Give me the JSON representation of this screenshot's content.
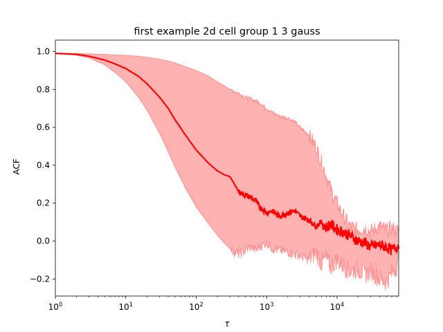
{
  "chart_data": {
    "type": "line",
    "title": "first example 2d cell group 1 3 gauss",
    "xlabel": "τ",
    "ylabel": "ACF",
    "xscale": "log",
    "xlim": [
      1,
      75000
    ],
    "ylim": [
      -0.29,
      1.06
    ],
    "grid": false,
    "x_ticks": [
      {
        "value": 1,
        "base": "10",
        "exp": "0"
      },
      {
        "value": 10,
        "base": "10",
        "exp": "1"
      },
      {
        "value": 100,
        "base": "10",
        "exp": "2"
      },
      {
        "value": 1000,
        "base": "10",
        "exp": "3"
      },
      {
        "value": 10000,
        "base": "10",
        "exp": "4"
      }
    ],
    "y_ticks": [
      {
        "value": -0.2,
        "label": "−0.2"
      },
      {
        "value": 0.0,
        "label": "0.0"
      },
      {
        "value": 0.2,
        "label": "0.2"
      },
      {
        "value": 0.4,
        "label": "0.4"
      },
      {
        "value": 0.6,
        "label": "0.6"
      },
      {
        "value": 0.8,
        "label": "0.8"
      },
      {
        "value": 1.0,
        "label": "1.0"
      }
    ],
    "series": [
      {
        "color": "#ff0000",
        "x": [
          1,
          2,
          3,
          5,
          7,
          10,
          15,
          20,
          30,
          40,
          50,
          70,
          100,
          150,
          200,
          250,
          300,
          350,
          400,
          450,
          500,
          600,
          700,
          800,
          1000,
          1200,
          1500,
          2000,
          2500,
          3000,
          4000,
          5000,
          6000,
          7000,
          8000,
          10000,
          12000,
          15000,
          20000,
          25000,
          30000,
          40000,
          50000,
          60000,
          75000
        ],
        "y": [
          0.99,
          0.985,
          0.975,
          0.955,
          0.935,
          0.91,
          0.87,
          0.83,
          0.76,
          0.7,
          0.64,
          0.56,
          0.48,
          0.41,
          0.37,
          0.35,
          0.34,
          0.3,
          0.26,
          0.25,
          0.24,
          0.23,
          0.21,
          0.18,
          0.15,
          0.16,
          0.13,
          0.15,
          0.16,
          0.13,
          0.11,
          0.08,
          0.1,
          0.07,
          0.09,
          0.06,
          0.05,
          0.03,
          0.0,
          -0.01,
          -0.03,
          -0.02,
          -0.03,
          -0.05,
          -0.02
        ]
      }
    ],
    "band": {
      "color": "#ff0000",
      "opacity": 0.3,
      "x": [
        1,
        2,
        3,
        5,
        7,
        10,
        15,
        20,
        30,
        40,
        50,
        70,
        100,
        150,
        200,
        250,
        300,
        350,
        400,
        450,
        500,
        600,
        700,
        800,
        1000,
        1200,
        1500,
        2000,
        2500,
        3000,
        4000,
        5000,
        6000,
        7000,
        8000,
        10000,
        12000,
        15000,
        20000,
        25000,
        30000,
        40000,
        50000,
        60000,
        75000
      ],
      "upper": [
        0.99,
        0.99,
        0.988,
        0.985,
        0.982,
        0.98,
        0.975,
        0.97,
        0.96,
        0.95,
        0.94,
        0.92,
        0.9,
        0.87,
        0.84,
        0.82,
        0.8,
        0.79,
        0.78,
        0.77,
        0.76,
        0.75,
        0.74,
        0.73,
        0.7,
        0.68,
        0.66,
        0.65,
        0.63,
        0.6,
        0.56,
        0.5,
        0.42,
        0.35,
        0.28,
        0.2,
        0.14,
        0.08,
        0.06,
        0.07,
        0.05,
        0.08,
        0.06,
        0.07,
        0.05
      ],
      "lower": [
        0.99,
        0.98,
        0.965,
        0.93,
        0.89,
        0.84,
        0.76,
        0.69,
        0.57,
        0.47,
        0.39,
        0.28,
        0.18,
        0.09,
        0.03,
        -0.01,
        -0.04,
        -0.06,
        -0.07,
        -0.06,
        -0.05,
        -0.03,
        -0.05,
        -0.03,
        -0.01,
        -0.04,
        -0.05,
        -0.06,
        -0.07,
        -0.08,
        -0.1,
        -0.06,
        -0.12,
        -0.09,
        -0.14,
        -0.1,
        -0.13,
        -0.16,
        -0.15,
        -0.18,
        -0.16,
        -0.2,
        -0.22,
        -0.17,
        -0.12
      ]
    }
  }
}
